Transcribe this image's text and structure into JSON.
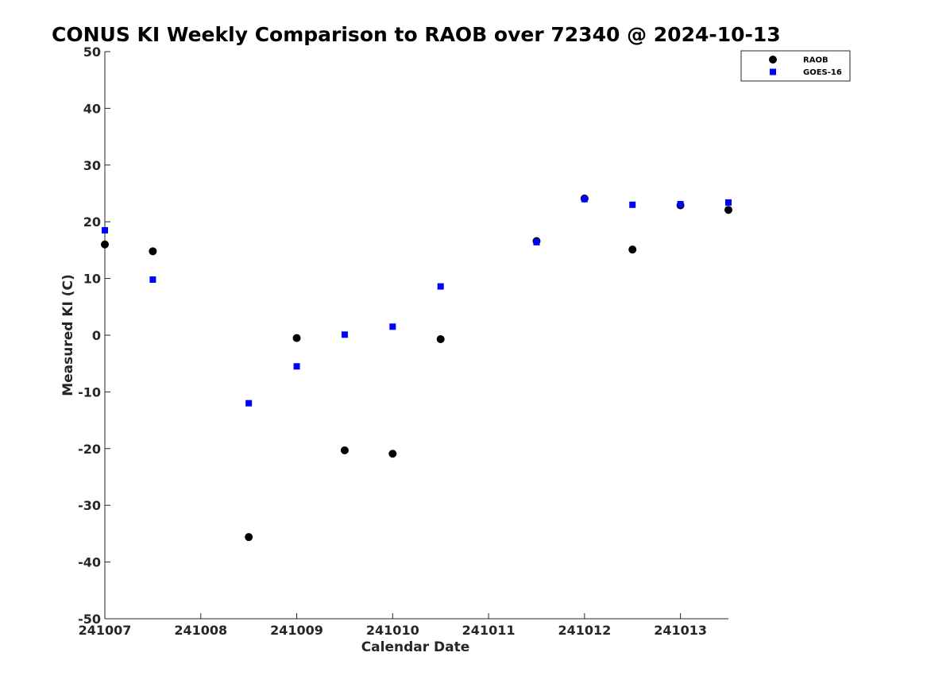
{
  "chart_data": {
    "type": "scatter",
    "title": "CONUS KI Weekly Comparison to RAOB over 72340 @ 2024-10-13",
    "xlabel": "Calendar Date",
    "ylabel": "Measured KI (C)",
    "x_tick_labels": [
      "241007",
      "241008",
      "241009",
      "241010",
      "241011",
      "241012",
      "241013"
    ],
    "y_ticks": [
      50,
      40,
      30,
      20,
      10,
      0,
      -10,
      -20,
      -30,
      -40,
      -50
    ],
    "xlim": [
      0,
      6.5
    ],
    "ylim": [
      -50,
      50
    ],
    "grid": false,
    "legend_position": "top-right",
    "series": [
      {
        "name": "RAOB",
        "marker": "circle",
        "color": "#000000",
        "x": [
          0,
          0.5,
          1.5,
          2,
          2.5,
          3,
          3.5,
          4.5,
          5,
          5.5,
          6,
          6.5
        ],
        "y": [
          16.0,
          14.8,
          -35.6,
          -0.5,
          -20.3,
          -20.9,
          -0.7,
          16.6,
          24.1,
          15.1,
          22.9,
          22.1
        ]
      },
      {
        "name": "GOES-16",
        "marker": "square",
        "color": "#0000ff",
        "x": [
          0,
          0.5,
          1.5,
          2,
          2.5,
          3,
          3.5,
          4.5,
          5,
          5.5,
          6,
          6.5
        ],
        "y": [
          18.5,
          9.8,
          -12.0,
          -5.5,
          0.1,
          1.5,
          8.6,
          16.4,
          24.0,
          23.0,
          23.1,
          23.4
        ]
      }
    ]
  }
}
